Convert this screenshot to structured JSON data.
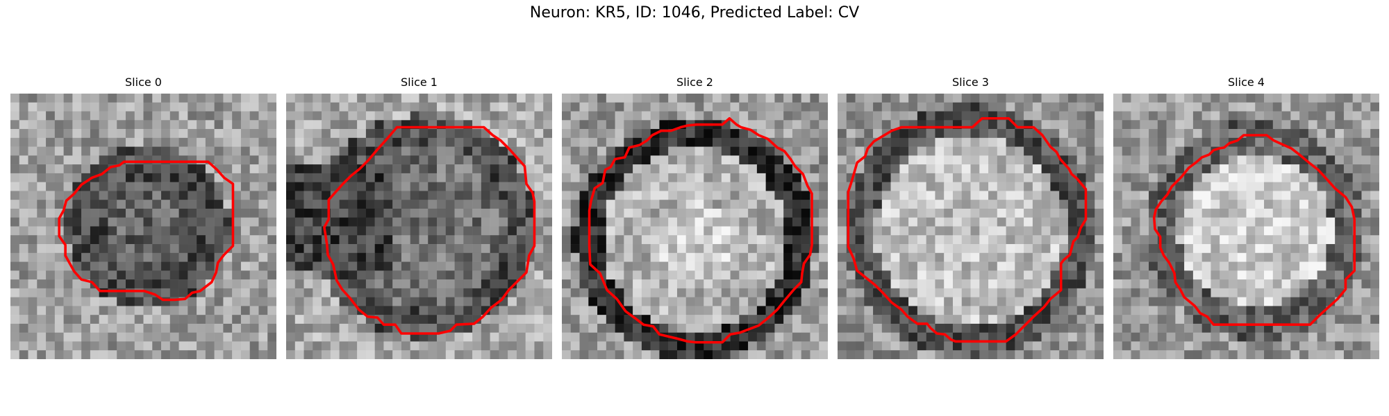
{
  "figure": {
    "title": "Neuron: KR5, ID: 1046, Predicted Label: CV"
  },
  "panels": [
    {
      "title": "Slice 0",
      "contour_color": "#ff0000"
    },
    {
      "title": "Slice 1",
      "contour_color": "#ff0000"
    },
    {
      "title": "Slice 2",
      "contour_color": "#ff0000"
    },
    {
      "title": "Slice 3",
      "contour_color": "#ff0000"
    },
    {
      "title": "Slice 4",
      "contour_color": "#ff0000"
    }
  ]
}
